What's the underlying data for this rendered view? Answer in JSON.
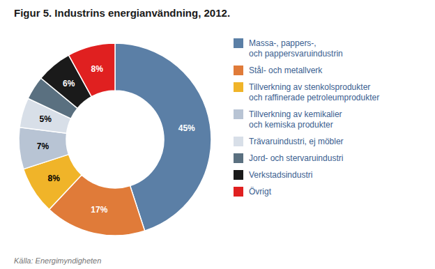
{
  "chart_data": {
    "type": "pie",
    "title": "Figur 5. Industrins energianvändning, 2012.",
    "annotations": [
      "Källa: Energimyndigheten"
    ],
    "categories": [
      "Massa-, pappers-,\noch pappersvaruindustrin",
      "Stål- och metallverk",
      "Tillverkning av stenkolsprodukter\noch raffinerade petroleumprodukter",
      "Tillverkning av kemikalier\noch kemiska produkter",
      "Trävaruindustri, ej möbler",
      "Jord- och stervaruindustri",
      "Verkstadsindustri",
      "Övrigt"
    ],
    "values": [
      45,
      17,
      8,
      7,
      5,
      4,
      6,
      8
    ],
    "value_labels": [
      "45%",
      "17%",
      "8%",
      "7%",
      "5%",
      null,
      "6%",
      "8%"
    ],
    "colors": [
      "#5b7fa6",
      "#e07b39",
      "#f0b429",
      "#b8c4d4",
      "#d8dfe8",
      "#5a7080",
      "#1a1a1a",
      "#e02020"
    ],
    "data_labels": true,
    "legend": "right"
  }
}
